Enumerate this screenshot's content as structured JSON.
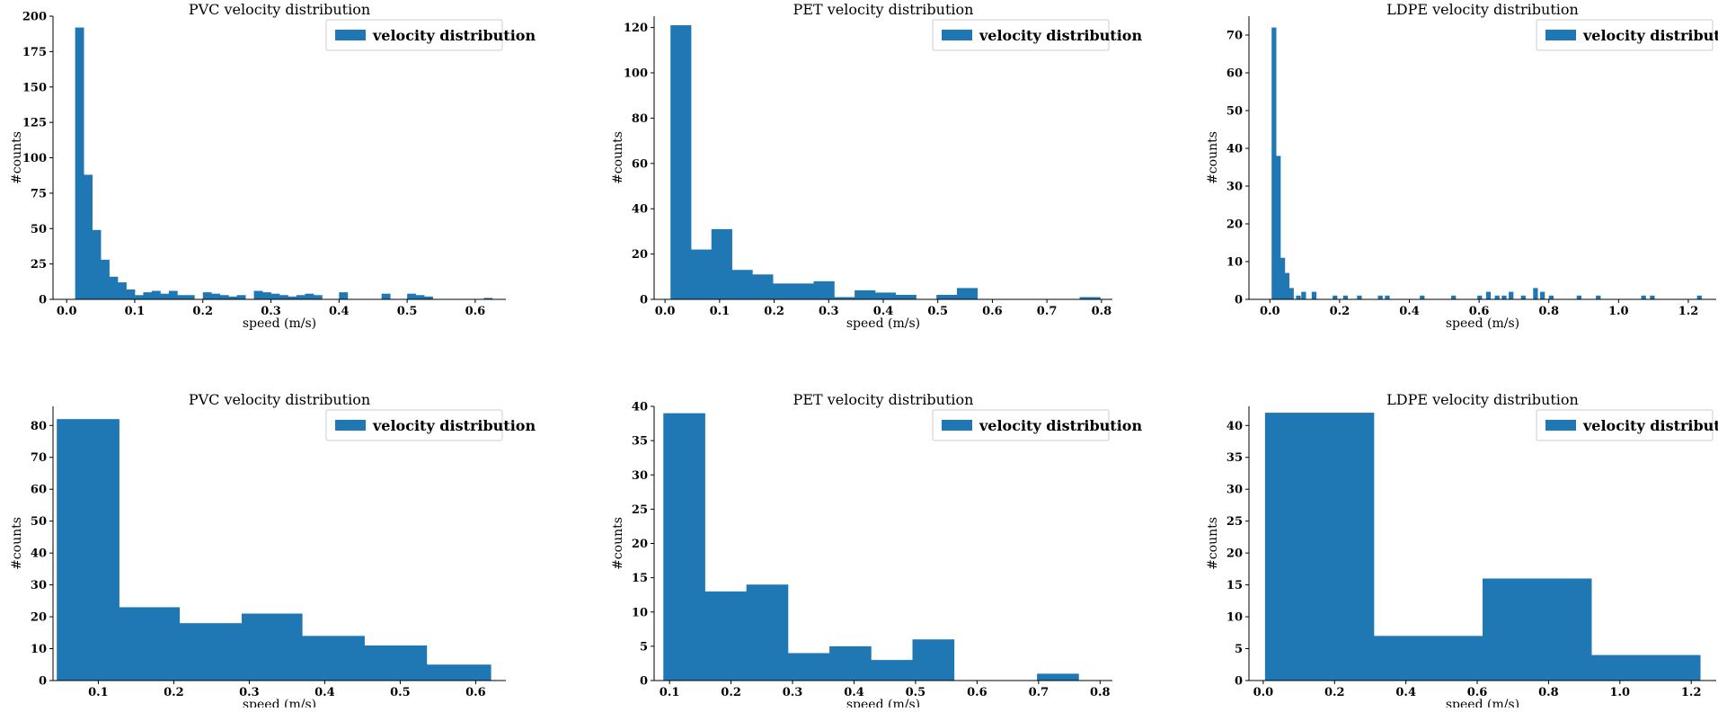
{
  "colors": {
    "bar": "#1f77b4",
    "legend_border": "#cccccc",
    "axis": "#000000"
  },
  "chart_data": [
    {
      "type": "bar",
      "title": "PVC velocity distribution",
      "xlabel": "speed (m/s)",
      "ylabel": "#counts",
      "legend": [
        "velocity distribution"
      ],
      "legend_position": "top-right",
      "grid": false,
      "xlim": [
        -0.02,
        0.645
      ],
      "ylim": [
        0,
        200
      ],
      "xticks": [
        0.0,
        0.1,
        0.2,
        0.3,
        0.4,
        0.5,
        0.6
      ],
      "xtick_labels": [
        "0.0",
        "0.1",
        "0.2",
        "0.3",
        "0.4",
        "0.5",
        "0.6"
      ],
      "yticks": [
        0,
        25,
        50,
        75,
        100,
        125,
        150,
        175,
        200
      ],
      "bin_edges": [
        0.0125,
        0.025,
        0.0375,
        0.05,
        0.0625,
        0.075,
        0.0875,
        0.1,
        0.1125,
        0.125,
        0.1375,
        0.15,
        0.1625,
        0.175,
        0.1875,
        0.2,
        0.2125,
        0.225,
        0.2375,
        0.25,
        0.2625,
        0.275,
        0.2875,
        0.3,
        0.3125,
        0.325,
        0.3375,
        0.35,
        0.3625,
        0.375,
        0.3875,
        0.4,
        0.4125,
        0.425,
        0.4375,
        0.45,
        0.4625,
        0.475,
        0.4875,
        0.5,
        0.5125,
        0.525,
        0.5375,
        0.55,
        0.5625,
        0.575,
        0.5875,
        0.6,
        0.6125,
        0.625
      ],
      "values": [
        192,
        88,
        49,
        28,
        16,
        12,
        7,
        3,
        5,
        6,
        4,
        6,
        3,
        3,
        0,
        5,
        4,
        3,
        2,
        3,
        0,
        6,
        5,
        4,
        3,
        2,
        3,
        4,
        3,
        0,
        0,
        5,
        0,
        0,
        0,
        0,
        4,
        0,
        0,
        4,
        3,
        2,
        0,
        0,
        0,
        0,
        0,
        0,
        1
      ]
    },
    {
      "type": "bar",
      "title": "PET velocity distribution",
      "xlabel": "speed (m/s)",
      "ylabel": "#counts",
      "legend": [
        "velocity distribution"
      ],
      "legend_position": "top-right",
      "grid": false,
      "xlim": [
        -0.02,
        0.82
      ],
      "ylim": [
        0,
        125
      ],
      "xticks": [
        0.0,
        0.1,
        0.2,
        0.3,
        0.4,
        0.5,
        0.6,
        0.7,
        0.8
      ],
      "xtick_labels": [
        "0.0",
        "0.1",
        "0.2",
        "0.3",
        "0.4",
        "0.5",
        "0.6",
        "0.7",
        "0.8"
      ],
      "yticks": [
        0,
        20,
        40,
        60,
        80,
        100,
        120
      ],
      "bin_edges": [
        0.01,
        0.0475,
        0.085,
        0.1225,
        0.16,
        0.1975,
        0.235,
        0.2725,
        0.31,
        0.3475,
        0.385,
        0.4225,
        0.46,
        0.4975,
        0.535,
        0.5725,
        0.61,
        0.6475,
        0.685,
        0.7225,
        0.76,
        0.7975
      ],
      "values": [
        121,
        22,
        31,
        13,
        11,
        7,
        7,
        8,
        1,
        4,
        3,
        2,
        0,
        2,
        5,
        0,
        0,
        0,
        0,
        0,
        1
      ]
    },
    {
      "type": "bar",
      "title": "LDPE velocity distribution",
      "xlabel": "speed (m/s)",
      "ylabel": "#counts",
      "legend": [
        "velocity distribution"
      ],
      "legend_position": "top-right",
      "grid": false,
      "xlim": [
        -0.06,
        1.28
      ],
      "ylim": [
        0,
        75
      ],
      "xticks": [
        0.0,
        0.2,
        0.4,
        0.6,
        0.8,
        1.0,
        1.2
      ],
      "xtick_labels": [
        "0.0",
        "0.2",
        "0.4",
        "0.6",
        "0.8",
        "1.0",
        "1.2"
      ],
      "yticks": [
        0,
        10,
        20,
        30,
        40,
        50,
        60,
        70
      ],
      "bin_width": 0.0125,
      "bin_starts": [
        0.005,
        0.0175,
        0.03,
        0.0425,
        0.055,
        0.075,
        0.09,
        0.12,
        0.18,
        0.21,
        0.25,
        0.31,
        0.33,
        0.43,
        0.52,
        0.595,
        0.62,
        0.645,
        0.665,
        0.685,
        0.72,
        0.755,
        0.775,
        0.8,
        0.88,
        0.935,
        1.065,
        1.09,
        1.225
      ],
      "values": [
        72,
        38,
        11,
        7,
        3,
        1,
        2,
        2,
        1,
        1,
        1,
        1,
        1,
        1,
        1,
        1,
        2,
        1,
        1,
        2,
        1,
        3,
        2,
        1,
        1,
        1,
        1,
        1,
        1
      ]
    },
    {
      "type": "bar",
      "title": "PVC velocity distribution",
      "xlabel": "speed (m/s)",
      "ylabel": "#counts",
      "legend": [
        "velocity distribution"
      ],
      "legend_position": "top-right",
      "grid": false,
      "xlim": [
        0.04,
        0.64
      ],
      "ylim": [
        0,
        86
      ],
      "xticks": [
        0.1,
        0.2,
        0.3,
        0.4,
        0.5,
        0.6
      ],
      "xtick_labels": [
        "0.1",
        "0.2",
        "0.3",
        "0.4",
        "0.5",
        "0.6"
      ],
      "yticks": [
        0,
        10,
        20,
        30,
        40,
        50,
        60,
        70,
        80
      ],
      "bin_edges": [
        0.045,
        0.1275,
        0.2075,
        0.29,
        0.37,
        0.4525,
        0.535,
        0.62
      ],
      "values": [
        82,
        23,
        18,
        21,
        14,
        11,
        5
      ]
    },
    {
      "type": "bar",
      "title": "PET velocity distribution",
      "xlabel": "speed (m/s)",
      "ylabel": "#counts",
      "legend": [
        "velocity distribution"
      ],
      "legend_position": "top-right",
      "grid": false,
      "xlim": [
        0.075,
        0.82
      ],
      "ylim": [
        0,
        40
      ],
      "xticks": [
        0.1,
        0.2,
        0.3,
        0.4,
        0.5,
        0.6,
        0.7,
        0.8
      ],
      "xtick_labels": [
        "0.1",
        "0.2",
        "0.3",
        "0.4",
        "0.5",
        "0.6",
        "0.7",
        "0.8"
      ],
      "yticks": [
        0,
        5,
        10,
        15,
        20,
        25,
        30,
        35,
        40
      ],
      "bin_edges": [
        0.09,
        0.1575,
        0.225,
        0.2925,
        0.36,
        0.4275,
        0.495,
        0.5625,
        0.63,
        0.6975,
        0.765
      ],
      "values": [
        39,
        13,
        14,
        4,
        5,
        3,
        6,
        0,
        0,
        1
      ]
    },
    {
      "type": "bar",
      "title": "LDPE velocity distribution",
      "xlabel": "speed (m/s)",
      "ylabel": "#counts",
      "legend": [
        "velocity distribution"
      ],
      "legend_position": "top-right",
      "grid": false,
      "xlim": [
        -0.04,
        1.27
      ],
      "ylim": [
        0,
        43
      ],
      "xticks": [
        0.0,
        0.2,
        0.4,
        0.6,
        0.8,
        1.0,
        1.2
      ],
      "xtick_labels": [
        "0.0",
        "0.2",
        "0.4",
        "0.6",
        "0.8",
        "1.0",
        "1.2"
      ],
      "yticks": [
        0,
        5,
        10,
        15,
        20,
        25,
        30,
        35,
        40
      ],
      "bin_edges": [
        0.005,
        0.31,
        0.615,
        0.92,
        1.225
      ],
      "values": [
        42,
        7,
        16,
        4
      ]
    }
  ]
}
